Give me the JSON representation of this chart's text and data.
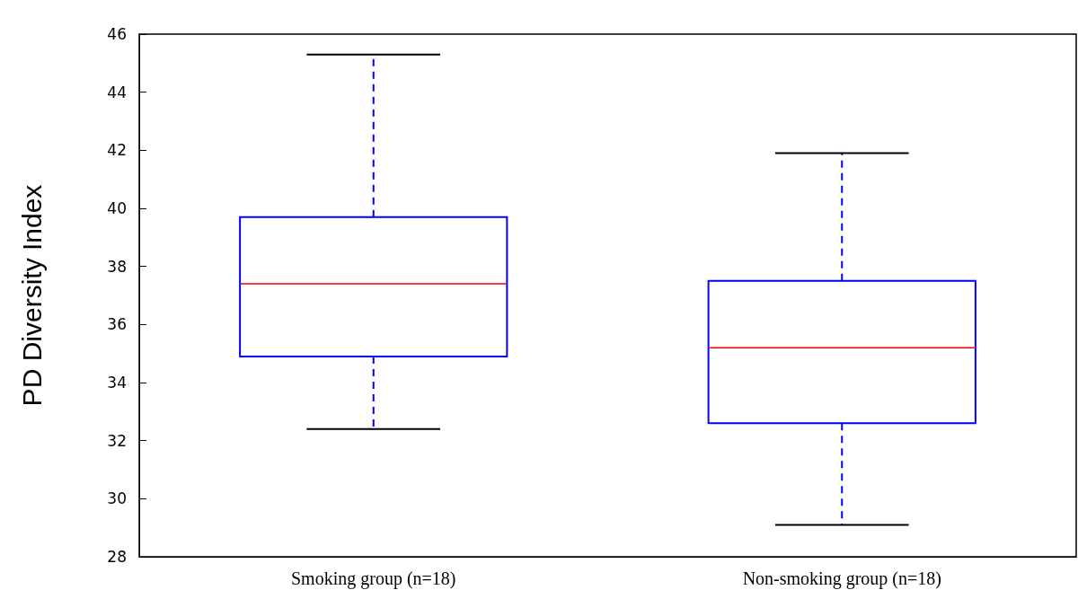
{
  "chart_data": {
    "type": "box",
    "ylabel": "PD Diversity Index",
    "categories": [
      "Smoking group (n=18)",
      "Non-smoking group (n=18)"
    ],
    "color": "#0000ff",
    "boxes": [
      {
        "low": 32.4,
        "q1": 34.9,
        "median": 37.4,
        "q3": 39.7,
        "high": 45.3
      },
      {
        "low": 29.1,
        "q1": 32.6,
        "median": 35.2,
        "q3": 37.5,
        "high": 41.9
      }
    ],
    "ylim": [
      28,
      46
    ],
    "yticks": [
      28,
      30,
      32,
      34,
      36,
      38,
      40,
      42,
      44,
      46
    ],
    "grid": false
  }
}
